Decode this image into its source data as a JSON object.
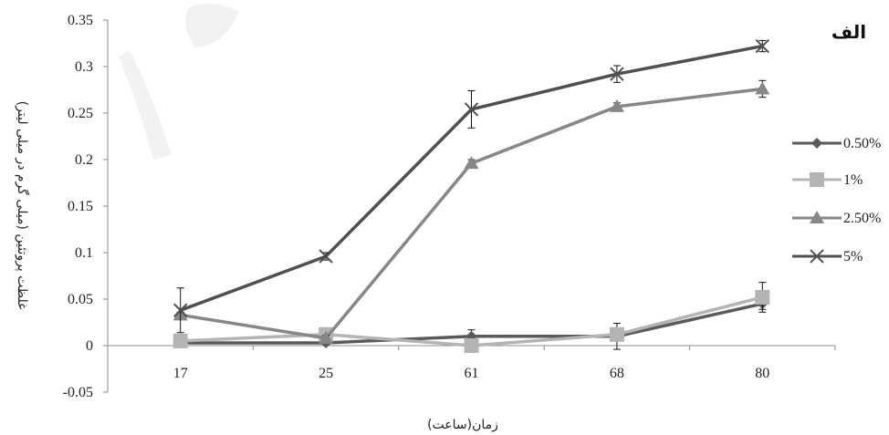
{
  "chart_data": {
    "type": "line",
    "panel_label": "الف",
    "xlabel": "زمان(ساعت)",
    "ylabel": "غلظت پروتئین (میلی گرم در میلی لیتر)",
    "categories": [
      "17",
      "25",
      "61",
      "68",
      "80"
    ],
    "ylim": [
      -0.05,
      0.35
    ],
    "yticks": [
      "0.35",
      "0.3",
      "0.25",
      "0.2",
      "0.15",
      "0.1",
      "0.05",
      "0",
      "-0.05"
    ],
    "ytick_values": [
      0.35,
      0.3,
      0.25,
      0.2,
      0.15,
      0.1,
      0.05,
      0,
      -0.05
    ],
    "grid": false,
    "legend_position": "right",
    "series": [
      {
        "name": "0.50%",
        "marker": "diamond",
        "color": "#5a5a5a",
        "values": [
          0.003,
          0.003,
          0.01,
          0.01,
          0.045
        ],
        "errors": [
          0.002,
          0.002,
          0.007,
          0.014,
          0.006
        ]
      },
      {
        "name": "1%",
        "marker": "square",
        "color": "#b4b4b4",
        "values": [
          0.005,
          0.012,
          0.0,
          0.012,
          0.052
        ],
        "errors": [
          0.003,
          0.003,
          0.002,
          0.004,
          0.016
        ]
      },
      {
        "name": "2.50%",
        "marker": "triangle",
        "color": "#878787",
        "values": [
          0.033,
          0.008,
          0.196,
          0.257,
          0.276
        ],
        "errors": [
          0.003,
          0.003,
          0.004,
          0.004,
          0.009
        ]
      },
      {
        "name": "5%",
        "marker": "x",
        "color": "#505050",
        "values": [
          0.038,
          0.096,
          0.254,
          0.292,
          0.322
        ],
        "errors": [
          0.024,
          0.004,
          0.02,
          0.009,
          0.006
        ]
      }
    ]
  }
}
